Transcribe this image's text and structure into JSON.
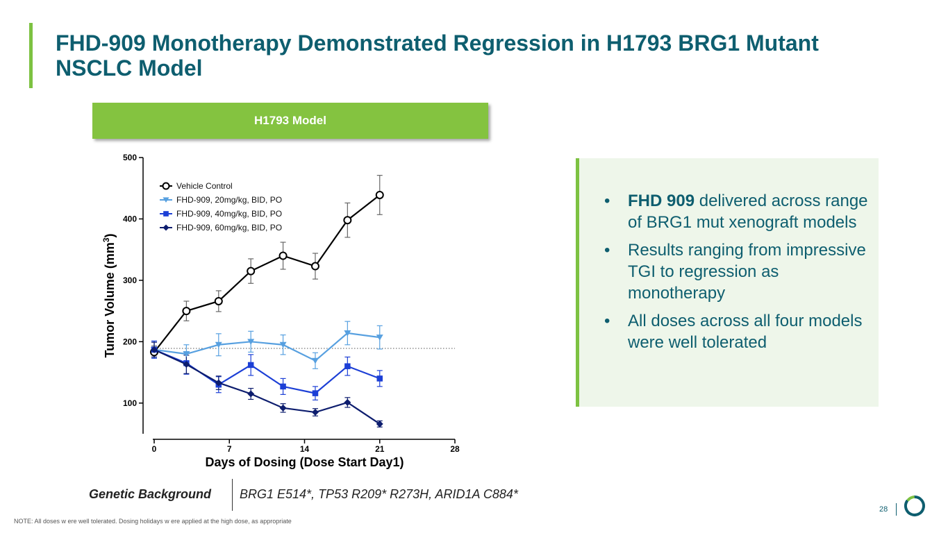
{
  "slide": {
    "title": "FHD-909 Monotherapy Demonstrated Regression in H1793 BRG1 Mutant NSCLC Model",
    "model_header": "H1793 Model",
    "bullets": [
      {
        "bold": "FHD 909",
        "text": " delivered across range of BRG1 mut xenograft models"
      },
      {
        "bold": "",
        "text": "Results ranging from impressive TGI to regression as monotherapy"
      },
      {
        "bold": "",
        "text": "All doses across all four models were well tolerated"
      }
    ],
    "bullet_char": "•",
    "genetic_background_label": "Genetic Background",
    "genetic_background_value": "BRG1 E514*, TP53 R209* R273H, ARID1A C884*",
    "note": "NOTE:  All doses w ere well tolerated. Dosing holidays w ere applied at the high dose, as appropriate",
    "page_number": "28",
    "colors": {
      "title": "#0e5e6f",
      "accent_green": "#7dc242",
      "header_green": "#84c340",
      "callout_bg": "#eef6ea"
    }
  },
  "chart_data": {
    "type": "line",
    "xlabel": "Days of Dosing (Dose Start Day1)",
    "ylabel": "Tumor Volume (mm3)",
    "ylabel_main": "Tumor Volume (mm",
    "ylabel_sup": "3",
    "ylabel_close": ")",
    "xlim": [
      0,
      28
    ],
    "ylim": [
      50,
      500
    ],
    "x_ticks": [
      0,
      7,
      14,
      21,
      28
    ],
    "y_ticks": [
      100,
      200,
      300,
      400,
      500
    ],
    "reference_line_y": 189,
    "legend_position": "top-left",
    "series": [
      {
        "name": "Vehicle Control",
        "color": "#000000",
        "marker": "open-circle",
        "x": [
          0,
          3,
          6,
          9,
          12,
          15,
          18,
          21
        ],
        "y": [
          183,
          250,
          266,
          315,
          340,
          323,
          398,
          439
        ],
        "err": [
          10,
          16,
          17,
          20,
          22,
          21,
          28,
          32
        ]
      },
      {
        "name": "FHD-909, 20mg/kg, BID, PO",
        "color": "#57a0e0",
        "marker": "triangle-down",
        "x": [
          0,
          3,
          6,
          9,
          12,
          15,
          18,
          21
        ],
        "y": [
          187,
          180,
          195,
          200,
          195,
          169,
          214,
          207
        ],
        "err": [
          14,
          15,
          18,
          17,
          16,
          13,
          19,
          19
        ]
      },
      {
        "name": "FHD-909, 40mg/kg, BID, PO",
        "color": "#1c3fd6",
        "marker": "square",
        "x": [
          0,
          3,
          6,
          9,
          12,
          15,
          18,
          21
        ],
        "y": [
          187,
          165,
          130,
          162,
          127,
          116,
          160,
          140
        ],
        "err": [
          14,
          18,
          13,
          17,
          13,
          11,
          15,
          13
        ]
      },
      {
        "name": "FHD-909, 60mg/kg, BID, PO",
        "color": "#0d1d6e",
        "marker": "diamond",
        "x": [
          0,
          3,
          6,
          9,
          12,
          15,
          18,
          21
        ],
        "y": [
          187,
          163,
          133,
          115,
          92,
          85,
          101,
          66
        ],
        "err": [
          12,
          15,
          11,
          9,
          7,
          6,
          8,
          5
        ]
      }
    ]
  }
}
